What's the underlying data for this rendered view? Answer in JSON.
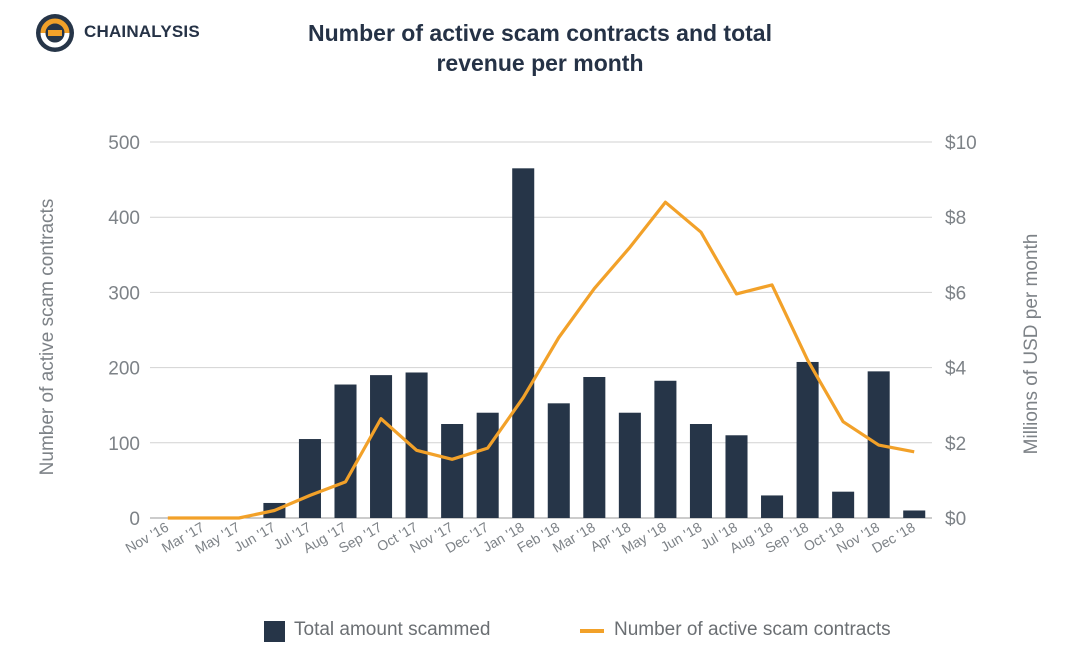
{
  "brand": {
    "name": "CHAINALYSIS",
    "logo_icon": "chainalysis-logo-icon",
    "colors": {
      "orange": "#f2a129",
      "navy": "#263548"
    }
  },
  "chart_data": {
    "type": "bar+line",
    "title": "Number of active scam contracts and total revenue per month",
    "title_lines": [
      "Number of active scam contracts and total",
      "revenue per month"
    ],
    "categories": [
      "Nov '16",
      "Mar '17",
      "May '17",
      "Jun '17",
      "Jul '17",
      "Aug '17",
      "Sep '17",
      "Oct '17",
      "Nov '17",
      "Dec '17",
      "Jan '18",
      "Feb '18",
      "Mar '18",
      "Apr '18",
      "May '18",
      "Jun '18",
      "Jul '18",
      "Aug '18",
      "Sep '18",
      "Oct '18",
      "Nov '18",
      "Dec '18"
    ],
    "series": [
      {
        "name": "Total amount scammed",
        "type": "bar",
        "axis": "right",
        "color": "#263548",
        "values": [
          0,
          0,
          0,
          0.4,
          2.1,
          3.55,
          3.8,
          3.87,
          2.5,
          2.8,
          9.3,
          3.05,
          3.75,
          2.8,
          3.65,
          2.5,
          2.2,
          0.6,
          4.15,
          0.7,
          3.9,
          0.2
        ]
      },
      {
        "name": "Number of active scam contracts",
        "type": "line",
        "axis": "left",
        "color": "#f2a129",
        "values": [
          0,
          0,
          0,
          10,
          30,
          48,
          132,
          90,
          78,
          93,
          160,
          240,
          305,
          360,
          420,
          380,
          298,
          310,
          210,
          128,
          97,
          88
        ]
      }
    ],
    "ylabel_left": "Number of active scam contracts",
    "ylabel_right": "Millions of USD per month",
    "ylim_left": [
      0,
      500
    ],
    "ylim_right": [
      0,
      10
    ],
    "yticks_left": [
      "0",
      "100",
      "200",
      "300",
      "400",
      "500"
    ],
    "yticks_right": [
      "$0",
      "$2",
      "$4",
      "$6",
      "$8",
      "$10"
    ],
    "grid": true,
    "legend_position": "bottom"
  }
}
